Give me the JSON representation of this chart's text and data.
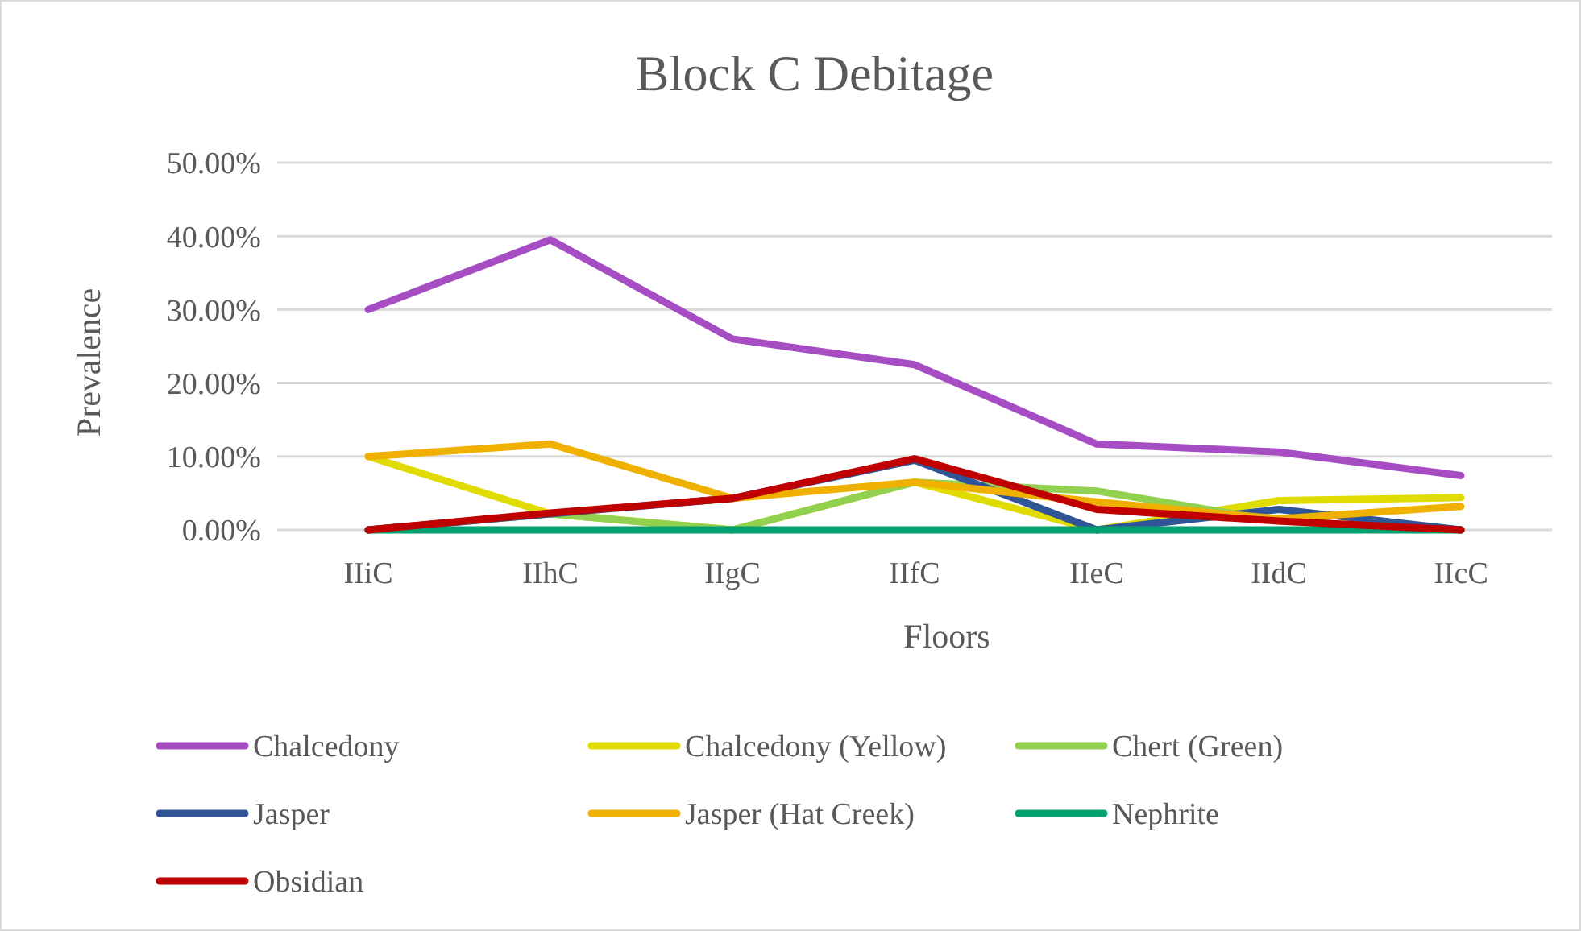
{
  "chart_data": {
    "type": "line",
    "title": "Block C Debitage",
    "xlabel": "Floors",
    "ylabel": "Prevalence",
    "categories": [
      "IIiC",
      "IIhC",
      "IIgC",
      "IIfC",
      "IIeC",
      "IIdC",
      "IIcC"
    ],
    "ylim": [
      0,
      50
    ],
    "yticks": [
      {
        "value": 0,
        "label": "0.00%"
      },
      {
        "value": 10,
        "label": "10.00%"
      },
      {
        "value": 20,
        "label": "20.00%"
      },
      {
        "value": 30,
        "label": "30.00%"
      },
      {
        "value": 40,
        "label": "40.00%"
      },
      {
        "value": 50,
        "label": "50.00%"
      }
    ],
    "grid": "y",
    "legend": "bottom",
    "marker": "none",
    "line_style": "solid",
    "series": [
      {
        "name": "Chalcedony",
        "color": "#a64dc4",
        "values": [
          30,
          39.5,
          26,
          22.5,
          11.7,
          10.6,
          7.4
        ]
      },
      {
        "name": "Chalcedony (Yellow)",
        "color": "#e0db00",
        "values": [
          10,
          2.2,
          0,
          6.5,
          0,
          4,
          4.4
        ]
      },
      {
        "name": "Chert (Green)",
        "color": "#92d050",
        "values": [
          0,
          2.2,
          0,
          6.5,
          5.3,
          1.2,
          0
        ]
      },
      {
        "name": "Jasper",
        "color": "#2f5597",
        "values": [
          0,
          2.2,
          4.3,
          9.5,
          0,
          2.8,
          0
        ]
      },
      {
        "name": "Jasper (Hat Creek)",
        "color": "#f0b000",
        "values": [
          10,
          11.7,
          4.3,
          6.5,
          3.8,
          1.5,
          3.2
        ]
      },
      {
        "name": "Nephrite",
        "color": "#00a070",
        "values": [
          0,
          0,
          0,
          0,
          0,
          0,
          0
        ]
      },
      {
        "name": "Obsidian",
        "color": "#c00000",
        "values": [
          0,
          2.3,
          4.3,
          9.7,
          2.8,
          1.2,
          0
        ]
      }
    ]
  }
}
